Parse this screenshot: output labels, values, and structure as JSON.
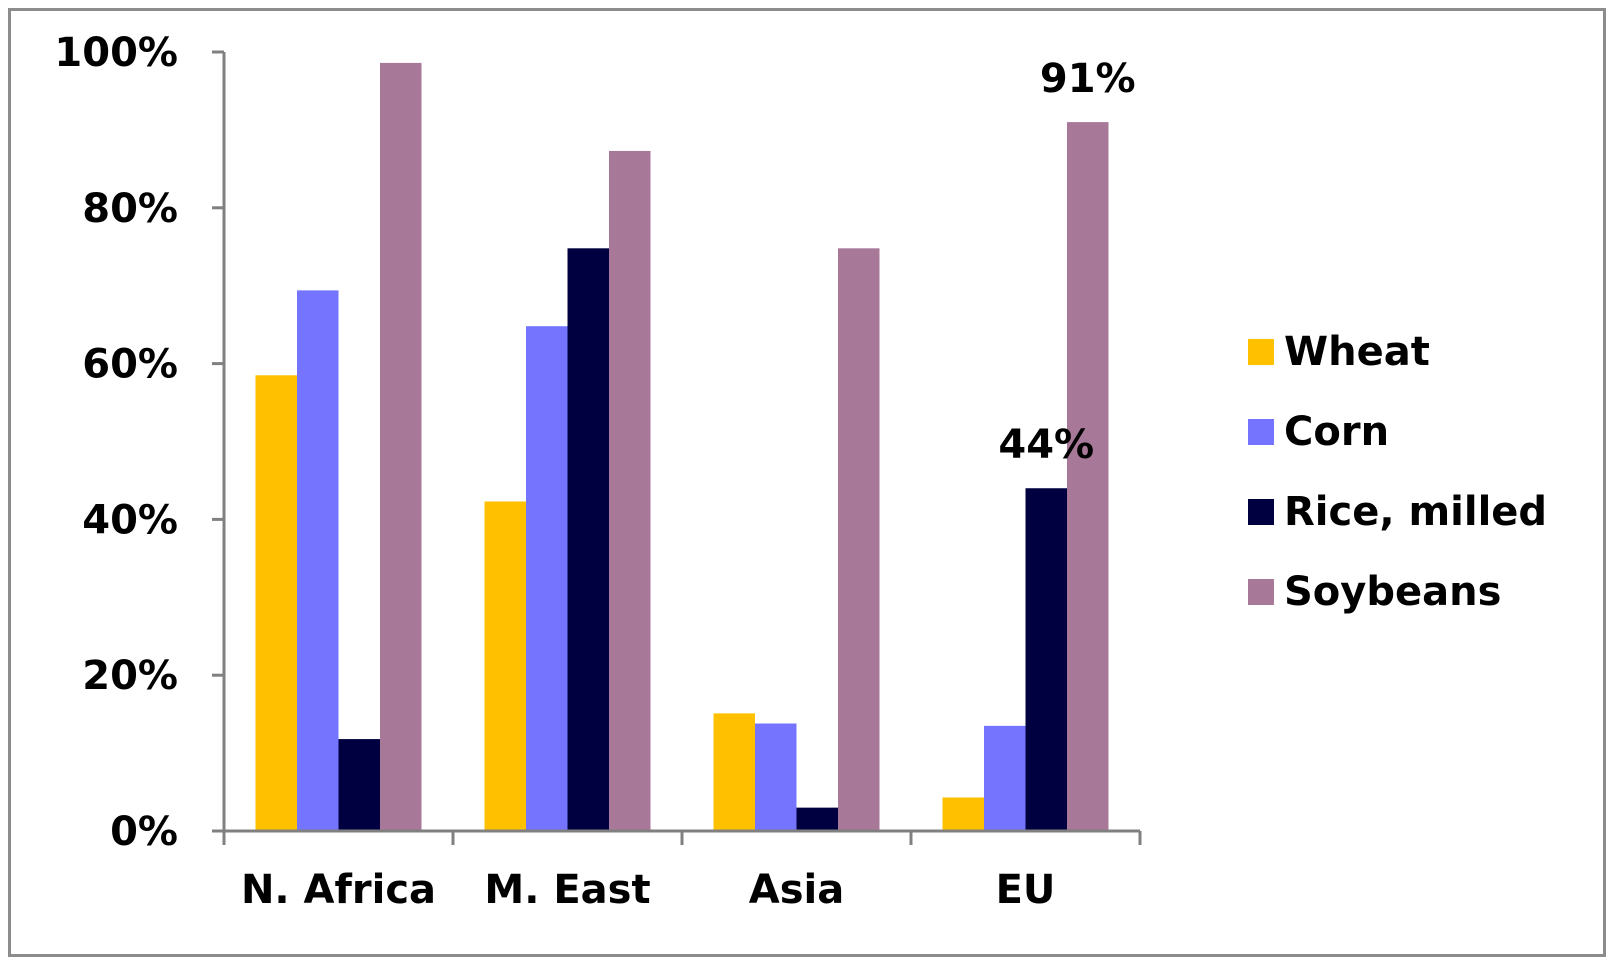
{
  "chart_data": {
    "type": "bar",
    "categories": [
      "N. Africa",
      "M. East",
      "Asia",
      "EU"
    ],
    "series": [
      {
        "name": "Wheat",
        "color": "#ffc000",
        "values": [
          58.5,
          42.3,
          15.1,
          4.3
        ]
      },
      {
        "name": "Corn",
        "color": "#7474ff",
        "values": [
          69.4,
          64.8,
          13.8,
          13.5
        ]
      },
      {
        "name": "Rice, milled",
        "color": "#000040",
        "values": [
          11.8,
          74.8,
          3.0,
          44
        ]
      },
      {
        "name": "Soybeans",
        "color": "#a87898",
        "values": [
          98.6,
          87.3,
          74.8,
          91
        ]
      }
    ],
    "ylim": [
      0,
      100
    ],
    "yticks": [
      0,
      20,
      40,
      60,
      80,
      100
    ],
    "ytick_labels": [
      "0%",
      "20%",
      "40%",
      "60%",
      "80%",
      "100%"
    ],
    "annotations": [
      {
        "category": "EU",
        "series": "Rice, milled",
        "text": "44%"
      },
      {
        "category": "EU",
        "series": "Soybeans",
        "text": "91%"
      }
    ],
    "legend_position": "right",
    "grid": false,
    "axis_color": "#808080"
  }
}
